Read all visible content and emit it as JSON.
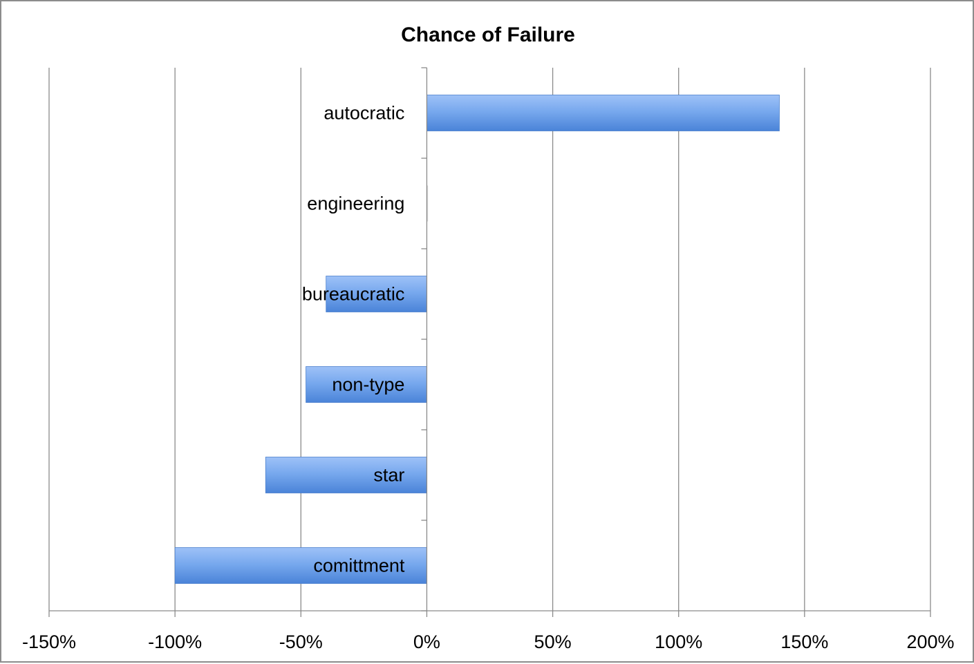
{
  "chart_data": {
    "type": "bar",
    "orientation": "horizontal",
    "title": "Chance of Failure",
    "categories": [
      "autocratic",
      "engineering",
      "bureaucratic",
      "non-type",
      "star",
      "comittment"
    ],
    "values": [
      1.4,
      0.0,
      -0.4,
      -0.48,
      -0.64,
      -1.0
    ],
    "xlim": [
      -1.5,
      2.0
    ],
    "xticks": [
      -1.5,
      -1.0,
      -0.5,
      0.0,
      0.5,
      1.0,
      1.5,
      2.0
    ],
    "xtick_labels": [
      "-150%",
      "-100%",
      "-50%",
      "0%",
      "50%",
      "100%",
      "150%",
      "200%"
    ],
    "grid": "vertical",
    "legend": "none",
    "bar_color": "#5b95e6"
  }
}
